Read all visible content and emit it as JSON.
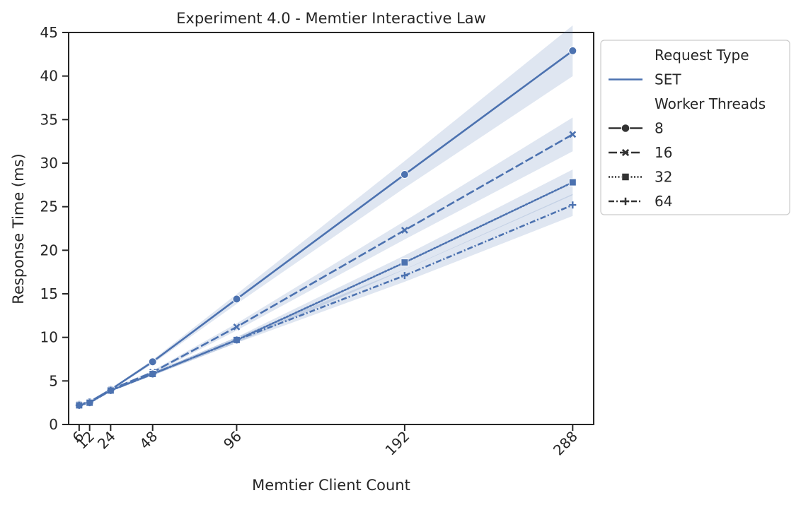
{
  "chart_data": {
    "type": "line",
    "title": "Experiment 4.0 - Memtier Interactive Law",
    "xlabel": "Memtier Client Count",
    "ylabel": "Response Time (ms)",
    "xlim": [
      0,
      300
    ],
    "ylim": [
      0,
      45
    ],
    "xticks": [
      6,
      12,
      24,
      48,
      96,
      192,
      288
    ],
    "yticks": [
      0,
      5,
      10,
      15,
      20,
      25,
      30,
      35,
      40,
      45
    ],
    "grid": false,
    "legend_position": "outside-right",
    "color": "#4c72b0",
    "x": [
      6,
      12,
      24,
      48,
      96,
      192,
      288
    ],
    "series": [
      {
        "name": "8",
        "marker": "circle",
        "dash": "solid",
        "values": [
          2.3,
          2.6,
          4.0,
          7.2,
          14.4,
          28.7,
          42.9
        ]
      },
      {
        "name": "16",
        "marker": "x",
        "dash": "dashed",
        "values": [
          2.3,
          2.5,
          4.0,
          6.0,
          11.2,
          22.3,
          33.3
        ]
      },
      {
        "name": "32",
        "marker": "square",
        "dash": "dotted",
        "values": [
          2.2,
          2.5,
          3.9,
          5.8,
          9.7,
          18.6,
          27.8
        ]
      },
      {
        "name": "64",
        "marker": "plus",
        "dash": "dashdot",
        "values": [
          2.2,
          2.5,
          3.9,
          5.8,
          9.7,
          17.1,
          25.2
        ]
      }
    ],
    "legend": {
      "hue_title": "Request Type",
      "hue_entries": [
        "SET"
      ],
      "style_title": "Worker Threads",
      "style_entries": [
        "8",
        "16",
        "32",
        "64"
      ]
    }
  }
}
